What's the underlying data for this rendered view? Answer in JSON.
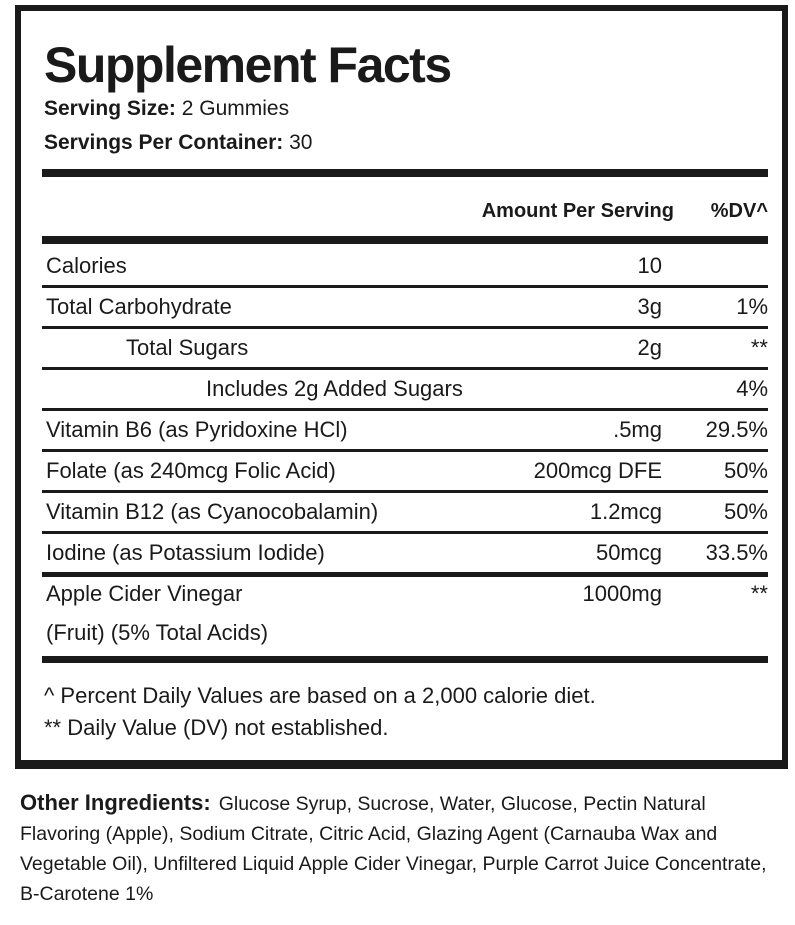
{
  "title": "Supplement Facts",
  "serving_size": {
    "label": "Serving Size:",
    "value": "2 Gummies"
  },
  "servings_per_container": {
    "label": "Servings Per Container:",
    "value": "30"
  },
  "columns": {
    "amount": "Amount Per Serving",
    "dv": "%DV^"
  },
  "rows": [
    {
      "name": "Calories",
      "amount": "10",
      "dv": ""
    },
    {
      "name": "Total Carbohydrate",
      "amount": "3g",
      "dv": "1%"
    },
    {
      "name": "Total Sugars",
      "amount": "2g",
      "dv": "**"
    },
    {
      "name": "Includes 2g Added Sugars",
      "amount": "",
      "dv": "4%"
    },
    {
      "name": "Vitamin B6 (as Pyridoxine HCl)",
      "amount": ".5mg",
      "dv": "29.5%"
    },
    {
      "name": "Folate (as 240mcg Folic Acid)",
      "amount": "200mcg DFE",
      "dv": "50%"
    },
    {
      "name": "Vitamin B12 (as Cyanocobalamin)",
      "amount": "1.2mcg",
      "dv": "50%"
    },
    {
      "name": "Iodine (as Potassium Iodide)",
      "amount": "50mcg",
      "dv": "33.5%"
    },
    {
      "name": "Apple Cider Vinegar",
      "name_line2": "(Fruit) (5% Total Acids)",
      "amount": "1000mg",
      "dv": "**"
    }
  ],
  "footnotes": [
    "^ Percent Daily Values are based on a 2,000 calorie diet.",
    "** Daily Value (DV) not established."
  ],
  "other_ingredients": {
    "label": "Other Ingredients:",
    "text": "Glucose Syrup, Sucrose, Water, Glucose, Pectin Natural Flavoring (Apple), Sodium Citrate, Citric Acid, Glazing Agent (Carnauba Wax and Vegetable Oil), Unfiltered Liquid Apple Cider Vinegar, Purple Carrot Juice Concentrate, B-Carotene 1%"
  }
}
